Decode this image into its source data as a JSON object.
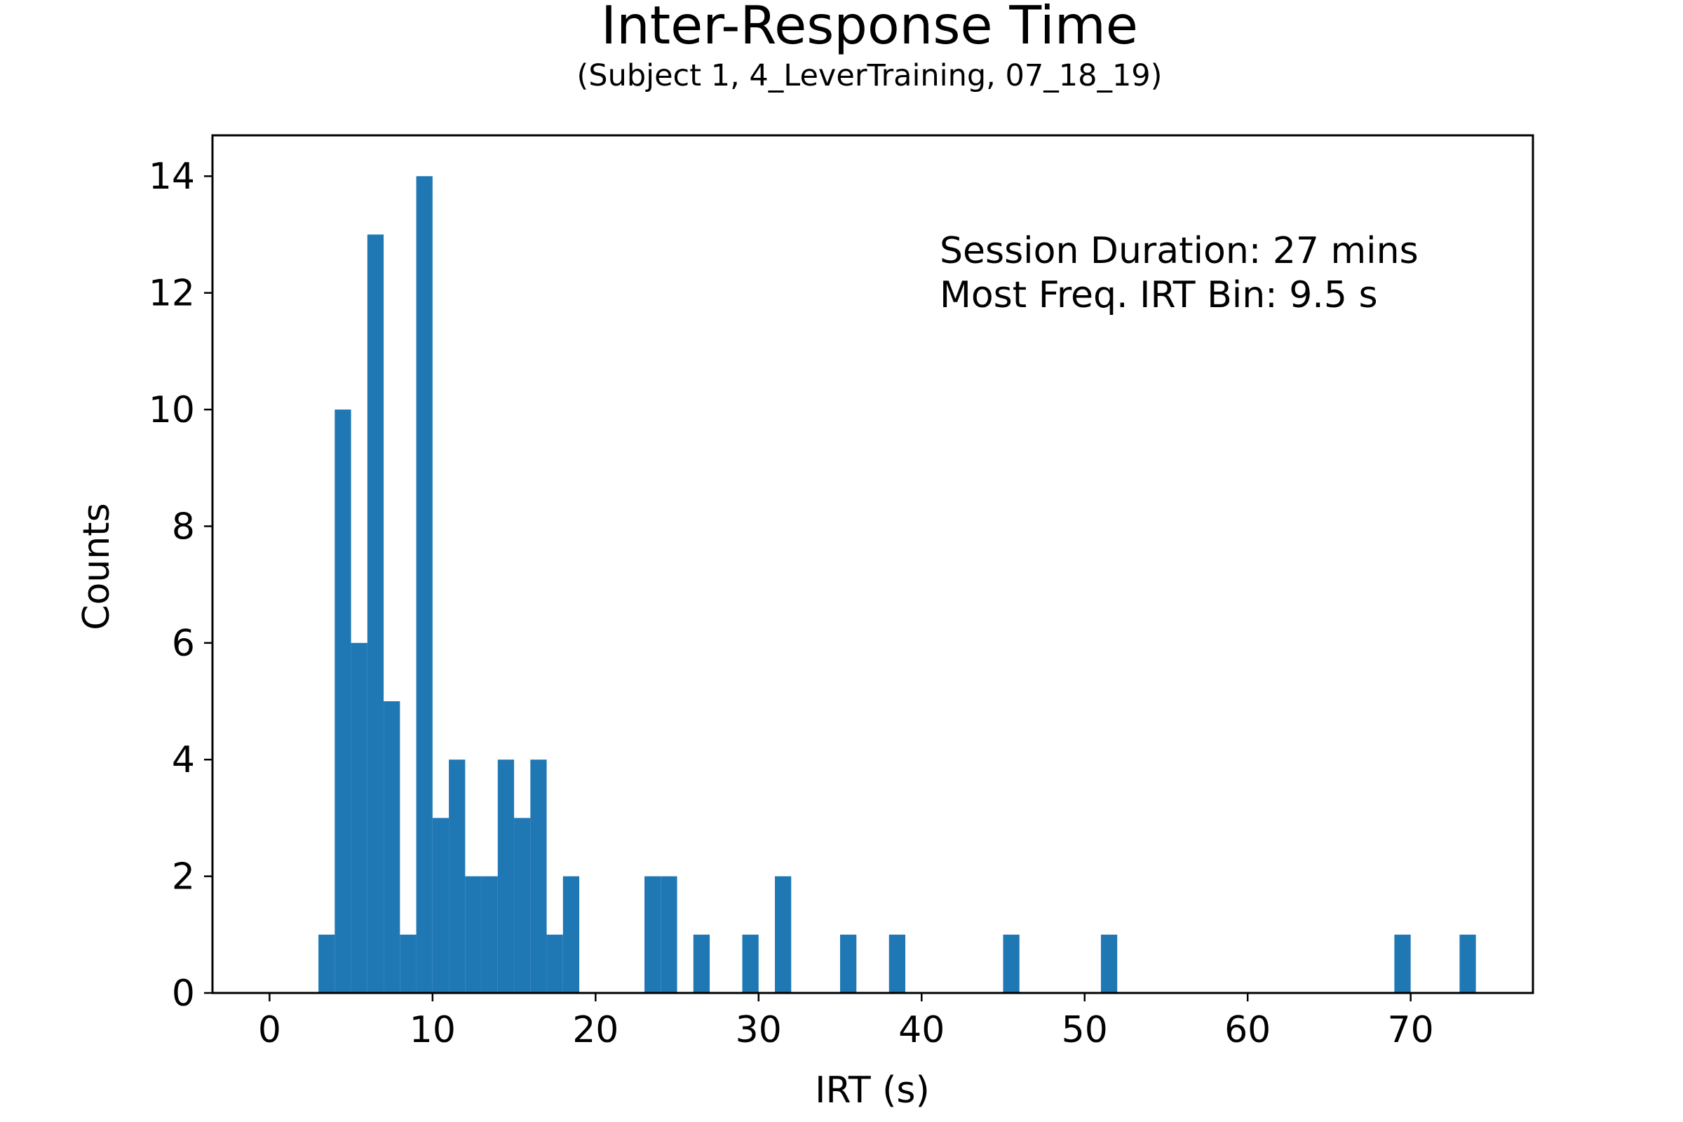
{
  "chart_data": {
    "type": "bar",
    "title": "Inter-Response Time",
    "subtitle": "(Subject 1, 4_LeverTraining, 07_18_19)",
    "xlabel": "IRT (s)",
    "ylabel": "Counts",
    "xlim": [
      -3.5,
      77.5
    ],
    "ylim": [
      0,
      14.7
    ],
    "bin_width": 1,
    "bar_color": "#1f77b4",
    "grid": false,
    "xticks": [
      "0",
      "10",
      "20",
      "30",
      "40",
      "50",
      "60",
      "70"
    ],
    "yticks": [
      "0",
      "2",
      "4",
      "6",
      "8",
      "10",
      "12",
      "14"
    ],
    "annotation_lines": [
      "Session Duration: 27 mins",
      "Most Freq. IRT Bin: 9.5 s"
    ],
    "bins": [
      {
        "x0": 3,
        "count": 1
      },
      {
        "x0": 4,
        "count": 10
      },
      {
        "x0": 5,
        "count": 6
      },
      {
        "x0": 6,
        "count": 13
      },
      {
        "x0": 7,
        "count": 5
      },
      {
        "x0": 8,
        "count": 1
      },
      {
        "x0": 9,
        "count": 14
      },
      {
        "x0": 10,
        "count": 3
      },
      {
        "x0": 11,
        "count": 4
      },
      {
        "x0": 12,
        "count": 2
      },
      {
        "x0": 13,
        "count": 2
      },
      {
        "x0": 14,
        "count": 4
      },
      {
        "x0": 15,
        "count": 3
      },
      {
        "x0": 16,
        "count": 4
      },
      {
        "x0": 17,
        "count": 1
      },
      {
        "x0": 18,
        "count": 2
      },
      {
        "x0": 23,
        "count": 2
      },
      {
        "x0": 24,
        "count": 2
      },
      {
        "x0": 26,
        "count": 1
      },
      {
        "x0": 29,
        "count": 1
      },
      {
        "x0": 31,
        "count": 2
      },
      {
        "x0": 35,
        "count": 1
      },
      {
        "x0": 38,
        "count": 1
      },
      {
        "x0": 45,
        "count": 1
      },
      {
        "x0": 51,
        "count": 1
      },
      {
        "x0": 69,
        "count": 1
      },
      {
        "x0": 73,
        "count": 1
      }
    ]
  }
}
